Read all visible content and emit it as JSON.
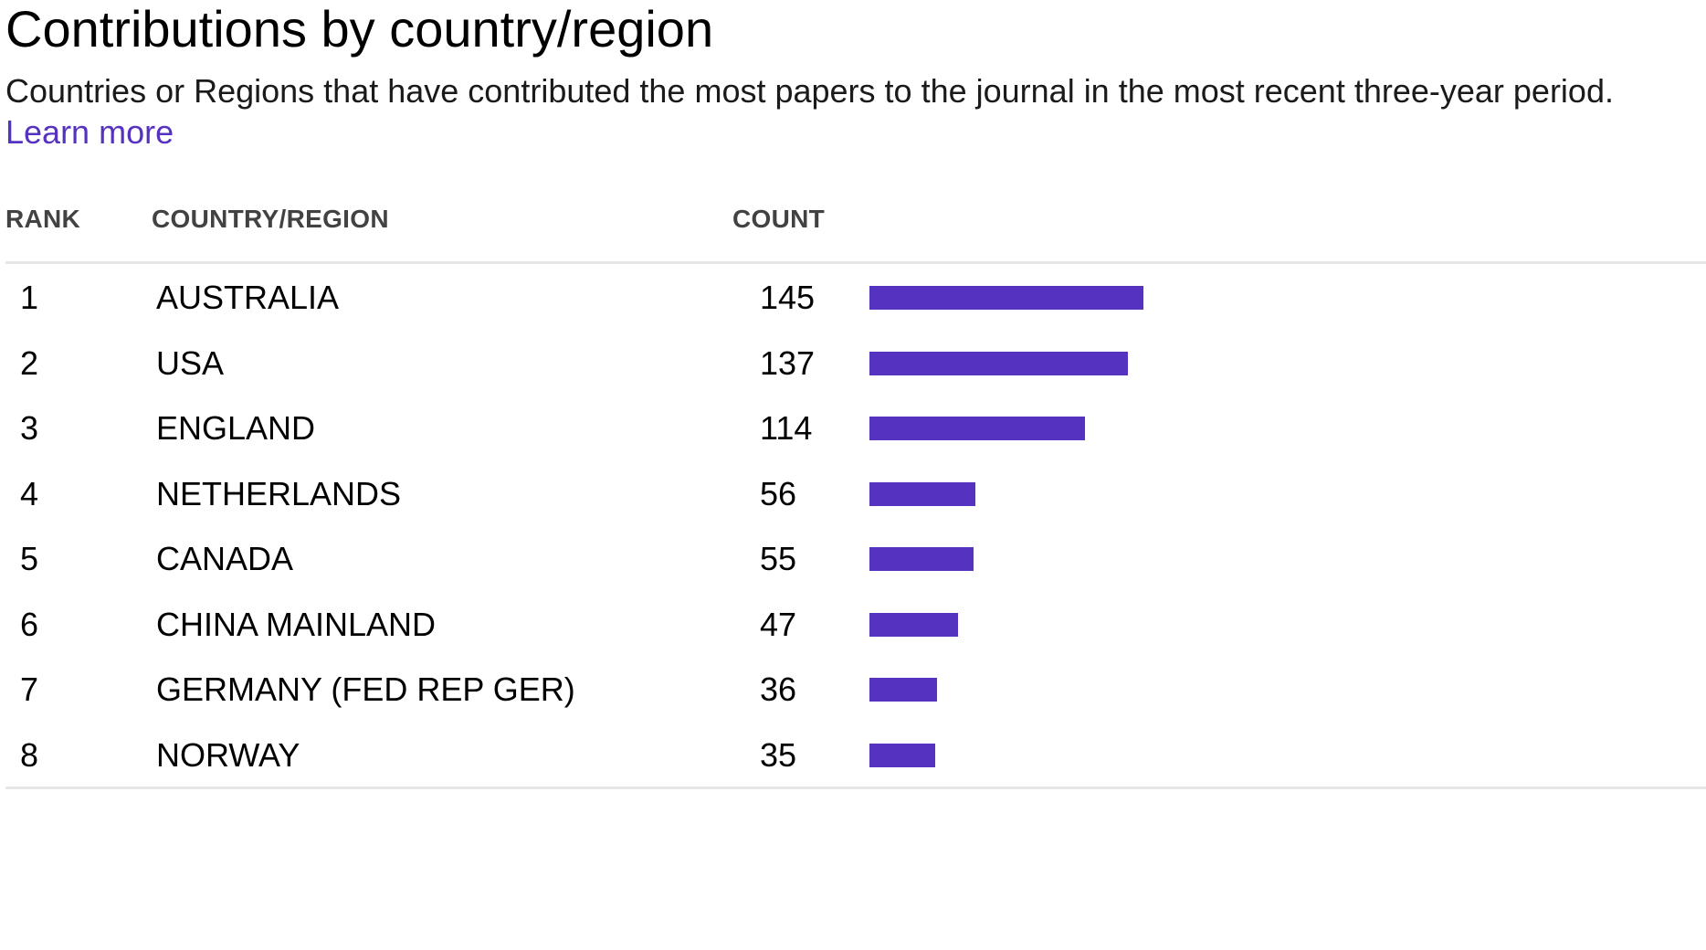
{
  "header": {
    "title": "Contributions by country/region",
    "subtitle": "Countries or Regions that have contributed the most papers to the journal in the most recent three-year period.",
    "learn_more": "Learn more"
  },
  "colors": {
    "bar": "#5533c0",
    "link": "#5533c0",
    "divider": "#e6e6e6"
  },
  "chart_data": {
    "type": "bar",
    "orientation": "horizontal",
    "title": "Contributions by country/region",
    "columns": [
      "RANK",
      "COUNTRY/REGION",
      "COUNT"
    ],
    "categories": [
      "AUSTRALIA",
      "USA",
      "ENGLAND",
      "NETHERLANDS",
      "CANADA",
      "CHINA MAINLAND",
      "GERMANY (FED REP GER)",
      "NORWAY"
    ],
    "ranks": [
      1,
      2,
      3,
      4,
      5,
      6,
      7,
      8
    ],
    "values": [
      145,
      137,
      114,
      56,
      55,
      47,
      36,
      35
    ],
    "grid": false,
    "legend": "none"
  }
}
